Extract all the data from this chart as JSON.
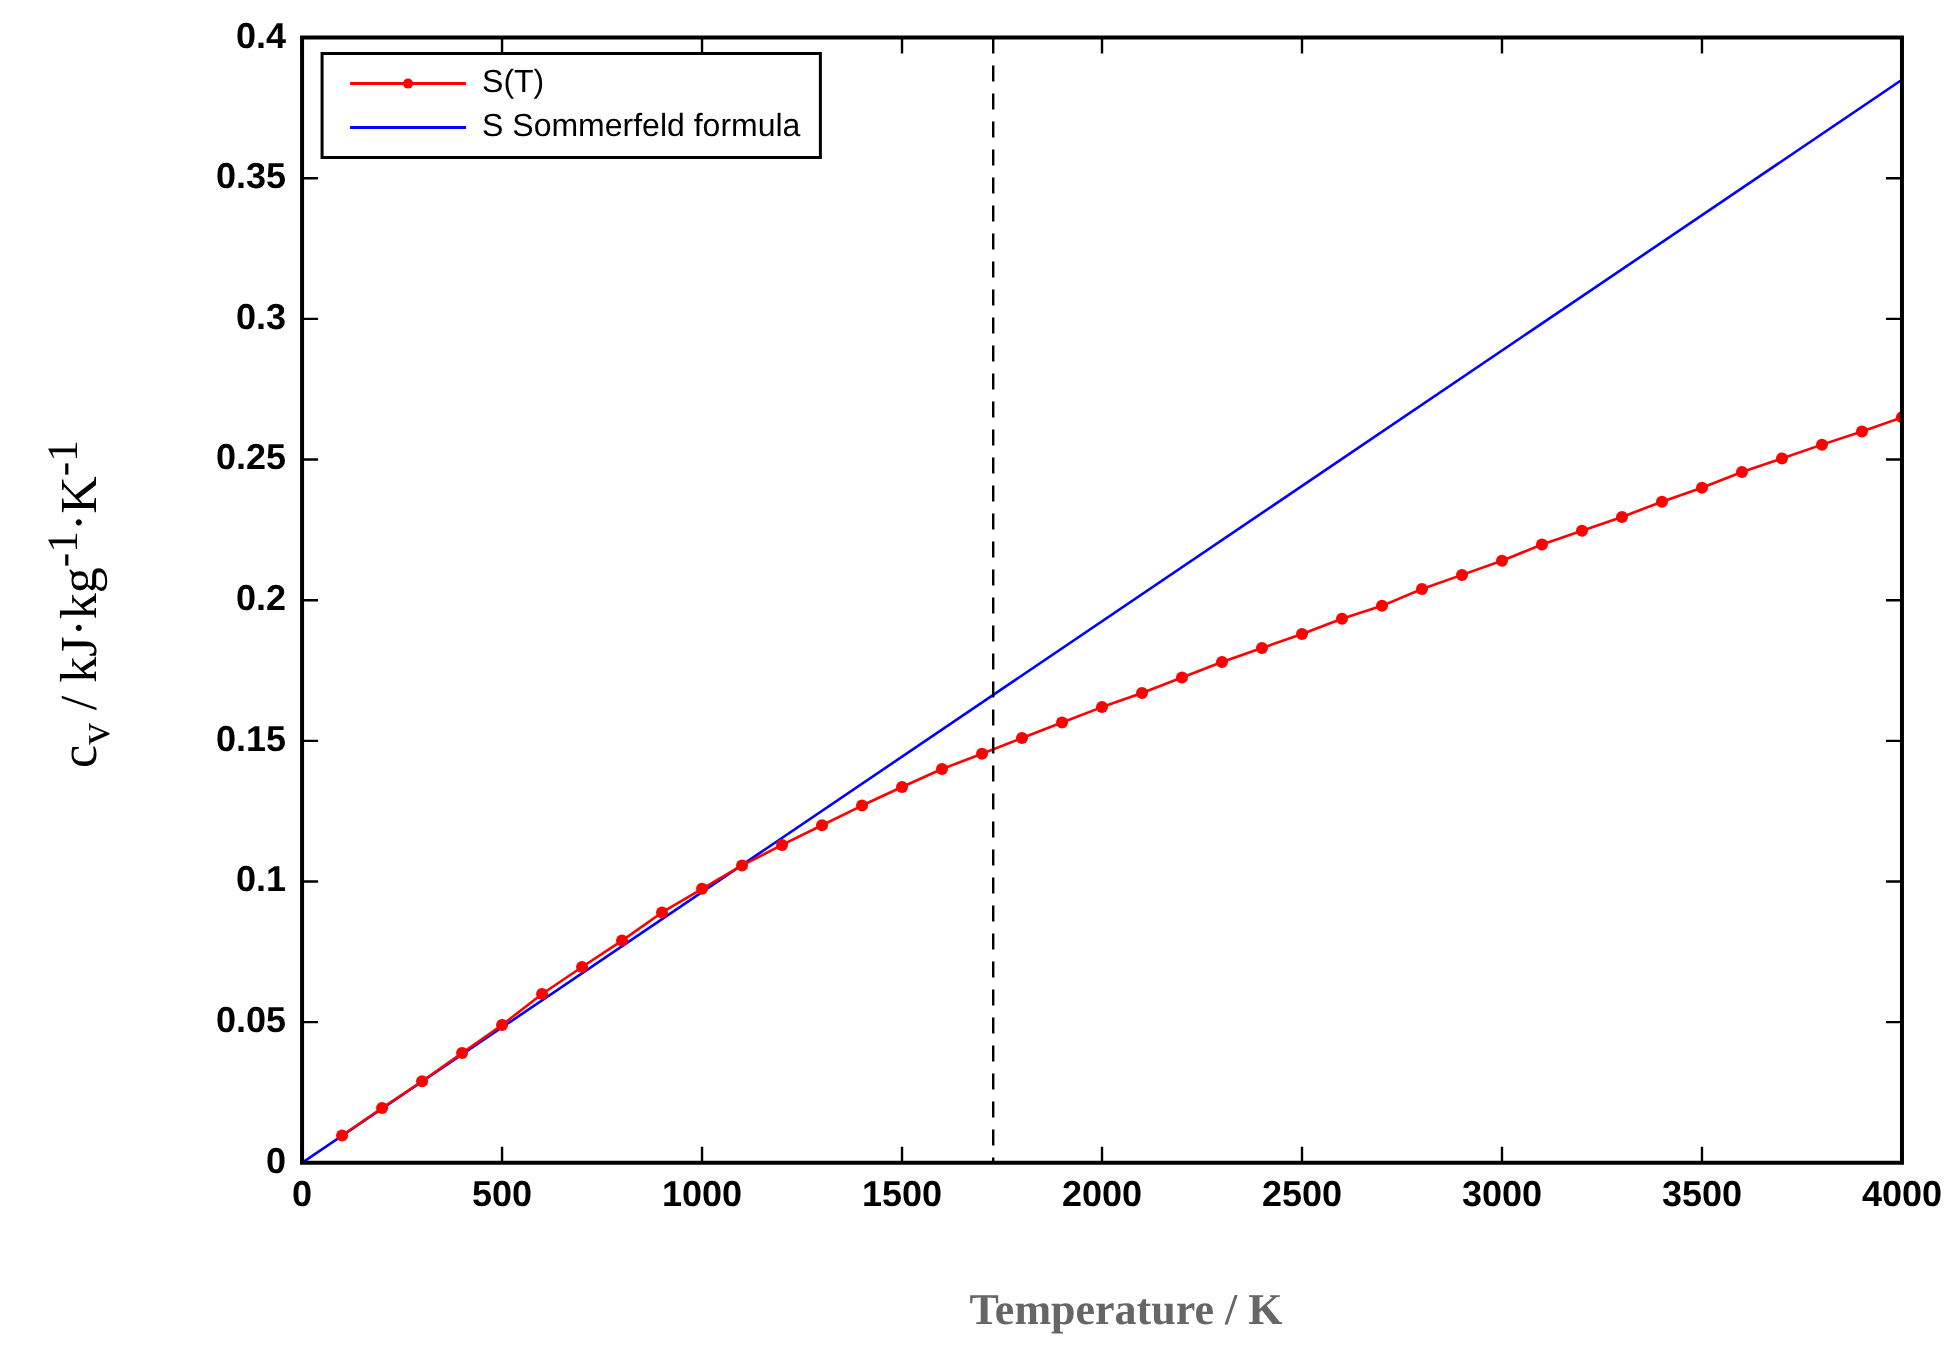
{
  "chart_data": {
    "type": "line",
    "xlabel": "Temperature / K",
    "ylabel": "c$_{v}$ / kJ·kg$^{-1}$·K$^{-1}$",
    "xlim": [
      0,
      4000
    ],
    "xticks": [
      0,
      500,
      1000,
      1500,
      2000,
      2500,
      3000,
      3500,
      4000
    ],
    "ylim": [
      0,
      0.4
    ],
    "yticks": [
      0,
      0.05,
      0.1,
      0.15,
      0.2,
      0.25,
      0.3,
      0.35,
      0.4
    ],
    "grid": false,
    "legend": "top left",
    "series": [
      {
        "name": "S(T)",
        "color": "#ff0000",
        "marker": "circle",
        "x": [
          100,
          200,
          300,
          400,
          500,
          600,
          700,
          800,
          900,
          1000,
          1100,
          1200,
          1300,
          1400,
          1500,
          1600,
          1700,
          1800,
          1900,
          2000,
          2100,
          2200,
          2300,
          2400,
          2500,
          2600,
          2700,
          2800,
          2900,
          3000,
          3100,
          3200,
          3300,
          3400,
          3500,
          3600,
          3700,
          3800,
          3900,
          4000
        ],
        "values": [
          0.0097,
          0.0195,
          0.029,
          0.039,
          0.049,
          0.06,
          0.0696,
          0.079,
          0.089,
          0.0974,
          0.1057,
          0.113,
          0.12,
          0.127,
          0.1336,
          0.14,
          0.1454,
          0.151,
          0.1565,
          0.162,
          0.167,
          0.1725,
          0.178,
          0.183,
          0.188,
          0.1934,
          0.198,
          0.204,
          0.209,
          0.214,
          0.2198,
          0.2247,
          0.2296,
          0.235,
          0.24,
          0.2456,
          0.2504,
          0.2553,
          0.26,
          0.265
        ]
      },
      {
        "name": "S Sommerfeld formula",
        "color": "#0000ff",
        "marker": "none",
        "x": [
          0,
          4000
        ],
        "values": [
          0,
          0.385
        ]
      }
    ],
    "ref_lines": [
      {
        "axis": "x",
        "value": 1728,
        "line_style": "dashed",
        "color": "#000000"
      }
    ]
  }
}
